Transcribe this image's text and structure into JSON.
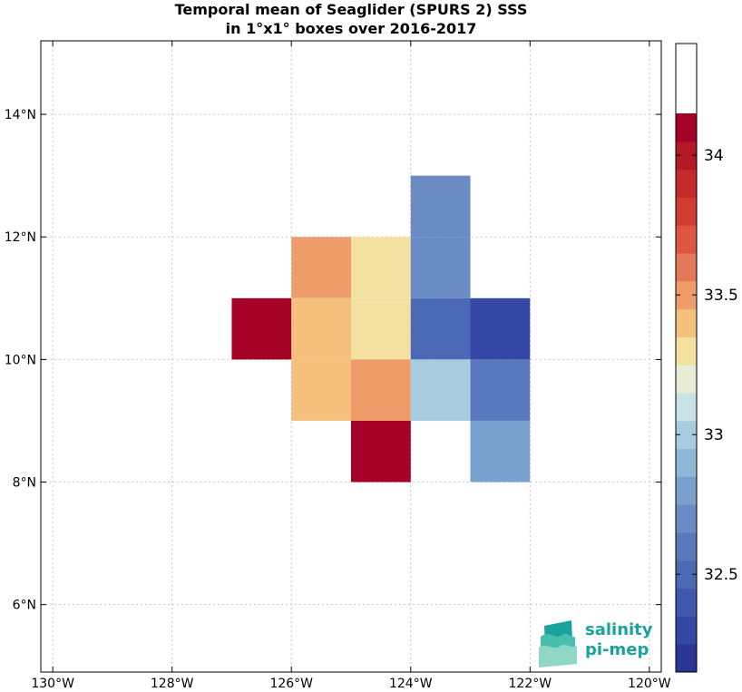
{
  "chart_data": {
    "type": "heatmap",
    "title": [
      "Temporal mean of Seaglider (SPURS 2) SSS",
      "in 1°x1° boxes over 2016-2017"
    ],
    "xlabel": "",
    "ylabel": "",
    "xlim": [
      -130.2,
      -119.8
    ],
    "ylim": [
      4.9,
      15.2
    ],
    "grid": true,
    "x_ticks": [
      {
        "value": -130,
        "label": "130°W"
      },
      {
        "value": -128,
        "label": "128°W"
      },
      {
        "value": -126,
        "label": "126°W"
      },
      {
        "value": -124,
        "label": "124°W"
      },
      {
        "value": -122,
        "label": "122°W"
      },
      {
        "value": -120,
        "label": "120°W"
      }
    ],
    "y_ticks": [
      {
        "value": 6,
        "label": "6°N"
      },
      {
        "value": 8,
        "label": "8°N"
      },
      {
        "value": 10,
        "label": "10°N"
      },
      {
        "value": 12,
        "label": "12°N"
      },
      {
        "value": 14,
        "label": "14°N"
      }
    ],
    "cells": [
      {
        "lon_min": -127,
        "lon_max": -126,
        "lat_min": 10,
        "lat_max": 11,
        "sss": 34.35
      },
      {
        "lon_min": -126,
        "lon_max": -125,
        "lat_min": 11,
        "lat_max": 12,
        "sss": 33.5
      },
      {
        "lon_min": -126,
        "lon_max": -125,
        "lat_min": 10,
        "lat_max": 11,
        "sss": 33.4
      },
      {
        "lon_min": -126,
        "lon_max": -125,
        "lat_min": 9,
        "lat_max": 10,
        "sss": 33.4
      },
      {
        "lon_min": -125,
        "lon_max": -124,
        "lat_min": 11,
        "lat_max": 12,
        "sss": 33.3
      },
      {
        "lon_min": -125,
        "lon_max": -124,
        "lat_min": 10,
        "lat_max": 11,
        "sss": 33.3
      },
      {
        "lon_min": -125,
        "lon_max": -124,
        "lat_min": 9,
        "lat_max": 10,
        "sss": 33.5
      },
      {
        "lon_min": -125,
        "lon_max": -124,
        "lat_min": 8,
        "lat_max": 9,
        "sss": 34.05
      },
      {
        "lon_min": -124,
        "lon_max": -123,
        "lat_min": 12,
        "lat_max": 13,
        "sss": 32.7
      },
      {
        "lon_min": -124,
        "lon_max": -123,
        "lat_min": 11,
        "lat_max": 12,
        "sss": 32.7
      },
      {
        "lon_min": -124,
        "lon_max": -123,
        "lat_min": 10,
        "lat_max": 11,
        "sss": 32.5
      },
      {
        "lon_min": -124,
        "lon_max": -123,
        "lat_min": 9,
        "lat_max": 10,
        "sss": 32.95
      },
      {
        "lon_min": -123,
        "lon_max": -122,
        "lat_min": 10,
        "lat_max": 11,
        "sss": 32.25
      },
      {
        "lon_min": -123,
        "lon_max": -122,
        "lat_min": 9,
        "lat_max": 10,
        "sss": 32.55
      },
      {
        "lon_min": -123,
        "lon_max": -122,
        "lat_min": 8,
        "lat_max": 9,
        "sss": 32.8
      }
    ],
    "colorbar": {
      "min": 32.15,
      "max": 34.4,
      "step": 0.1,
      "ticks": [
        {
          "value": 32.5,
          "label": "32.5"
        },
        {
          "value": 33,
          "label": "33"
        },
        {
          "value": 33.5,
          "label": "33.5"
        },
        {
          "value": 34,
          "label": "34"
        }
      ],
      "colors": [
        "#2a3594",
        "#3547a4",
        "#4158ae",
        "#4c69b5",
        "#5a79bc",
        "#6a8bc4",
        "#7aa0ce",
        "#8fb7d8",
        "#a9cde0",
        "#c8e3e6",
        "#e8ebd6",
        "#f3e1a1",
        "#f4c07b",
        "#ee9c69",
        "#e57859",
        "#dd5640",
        "#d23b30",
        "#c4292c",
        "#b31827",
        "#a50026"
      ]
    }
  },
  "logo": {
    "line1": "salinity",
    "line2": "pi-mep",
    "color": "#1aa39a"
  }
}
